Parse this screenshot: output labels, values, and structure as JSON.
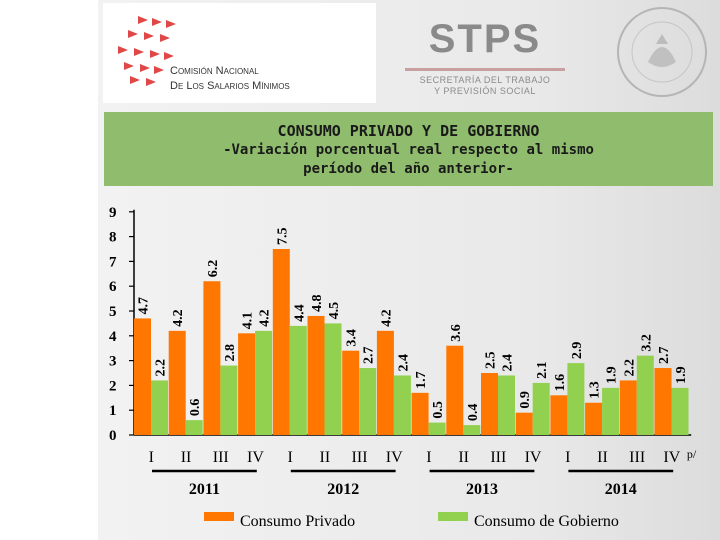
{
  "header": {
    "cnsm_line1": "Comisión Nacional",
    "cnsm_line2": "De Los Salarios Mínimos",
    "stps": "STPS",
    "stps_sub1": "SECRETARÍA DEL TRABAJO",
    "stps_sub2": "Y PREVISIÓN SOCIAL"
  },
  "colors": {
    "privado": "#ff7700",
    "gobierno": "#92d050",
    "title_bg": "#8fbd6d"
  },
  "chart_data": {
    "type": "bar",
    "title_lines": [
      "CONSUMO PRIVADO Y DE GOBIERNO",
      "-Variación porcentual real respecto al mismo",
      "período del año anterior-"
    ],
    "xlabel": "",
    "ylabel": "",
    "ylim": [
      0,
      9
    ],
    "yticks": [
      "0",
      "1",
      "2",
      "3",
      "4",
      "5",
      "6",
      "7",
      "8",
      "9"
    ],
    "grid": false,
    "legend_position": "bottom",
    "categories": [
      "I",
      "II",
      "III",
      "IV",
      "I",
      "II",
      "III",
      "IV",
      "I",
      "II",
      "III",
      "IV",
      "I",
      "II",
      "III",
      "IV"
    ],
    "year_groups": [
      {
        "label": "2011",
        "start": 0,
        "end": 3
      },
      {
        "label": "2012",
        "start": 4,
        "end": 7
      },
      {
        "label": "2013",
        "start": 8,
        "end": 11
      },
      {
        "label": "2014",
        "start": 12,
        "end": 15
      }
    ],
    "last_category_note": "p/",
    "series": [
      {
        "name": "Consumo Privado",
        "values": [
          4.7,
          4.2,
          6.2,
          4.1,
          7.5,
          4.8,
          3.4,
          4.2,
          1.7,
          3.6,
          2.5,
          0.9,
          1.6,
          1.3,
          2.2,
          2.7
        ]
      },
      {
        "name": "Consumo de Gobierno",
        "values": [
          2.2,
          0.6,
          2.8,
          4.2,
          4.4,
          4.5,
          2.7,
          2.4,
          0.5,
          0.4,
          2.4,
          2.1,
          2.9,
          1.9,
          3.2,
          1.9
        ]
      }
    ]
  }
}
